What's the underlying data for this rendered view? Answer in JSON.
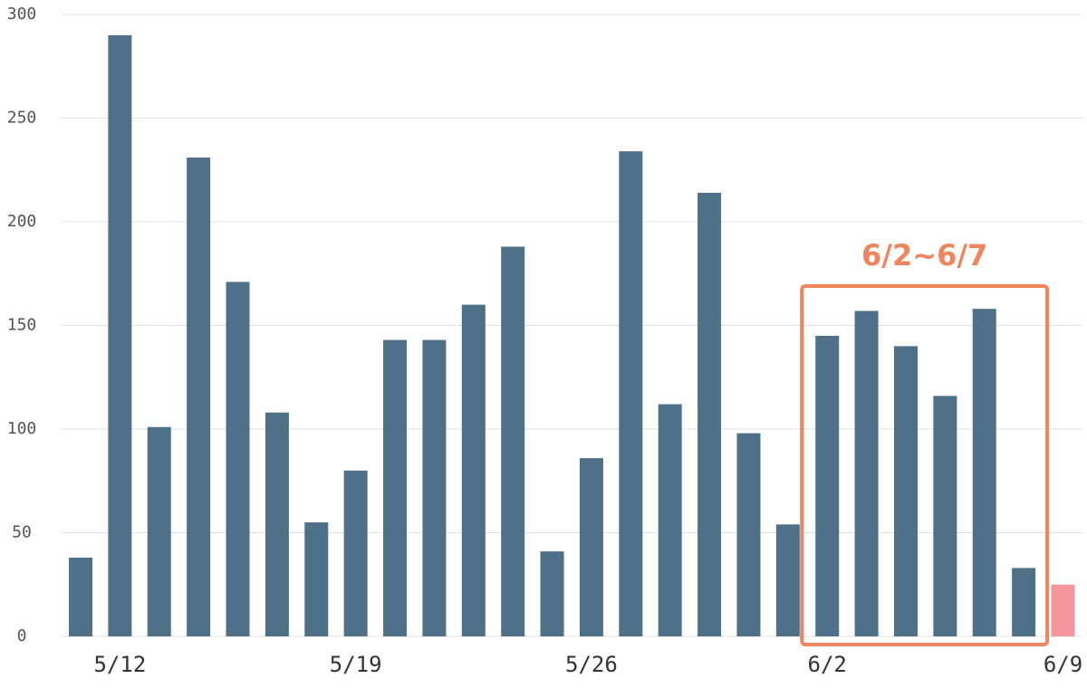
{
  "chart_data": {
    "type": "bar",
    "categories": [
      null,
      "5/12",
      null,
      null,
      null,
      null,
      null,
      "5/19",
      null,
      null,
      null,
      null,
      null,
      "5/26",
      null,
      null,
      null,
      null,
      null,
      "6/2",
      null,
      null,
      null,
      null,
      null,
      "6/9"
    ],
    "values": [
      38,
      290,
      101,
      231,
      171,
      108,
      55,
      80,
      143,
      143,
      160,
      188,
      41,
      86,
      234,
      112,
      214,
      98,
      54,
      145,
      157,
      140,
      116,
      158,
      33,
      25
    ],
    "colors": [
      "#4e7189",
      "#4e7189",
      "#4e7189",
      "#4e7189",
      "#4e7189",
      "#4e7189",
      "#4e7189",
      "#4e7189",
      "#4e7189",
      "#4e7189",
      "#4e7189",
      "#4e7189",
      "#4e7189",
      "#4e7189",
      "#4e7189",
      "#4e7189",
      "#4e7189",
      "#4e7189",
      "#4e7189",
      "#4e7189",
      "#4e7189",
      "#4e7189",
      "#4e7189",
      "#4e7189",
      "#4e7189",
      "#f4979c"
    ],
    "ylim": [
      0,
      300
    ],
    "yticks": [
      0,
      50,
      100,
      150,
      200,
      250,
      300
    ],
    "grid": true,
    "annotation": {
      "text": "6/2~6/7",
      "color": "#f0845c"
    }
  }
}
